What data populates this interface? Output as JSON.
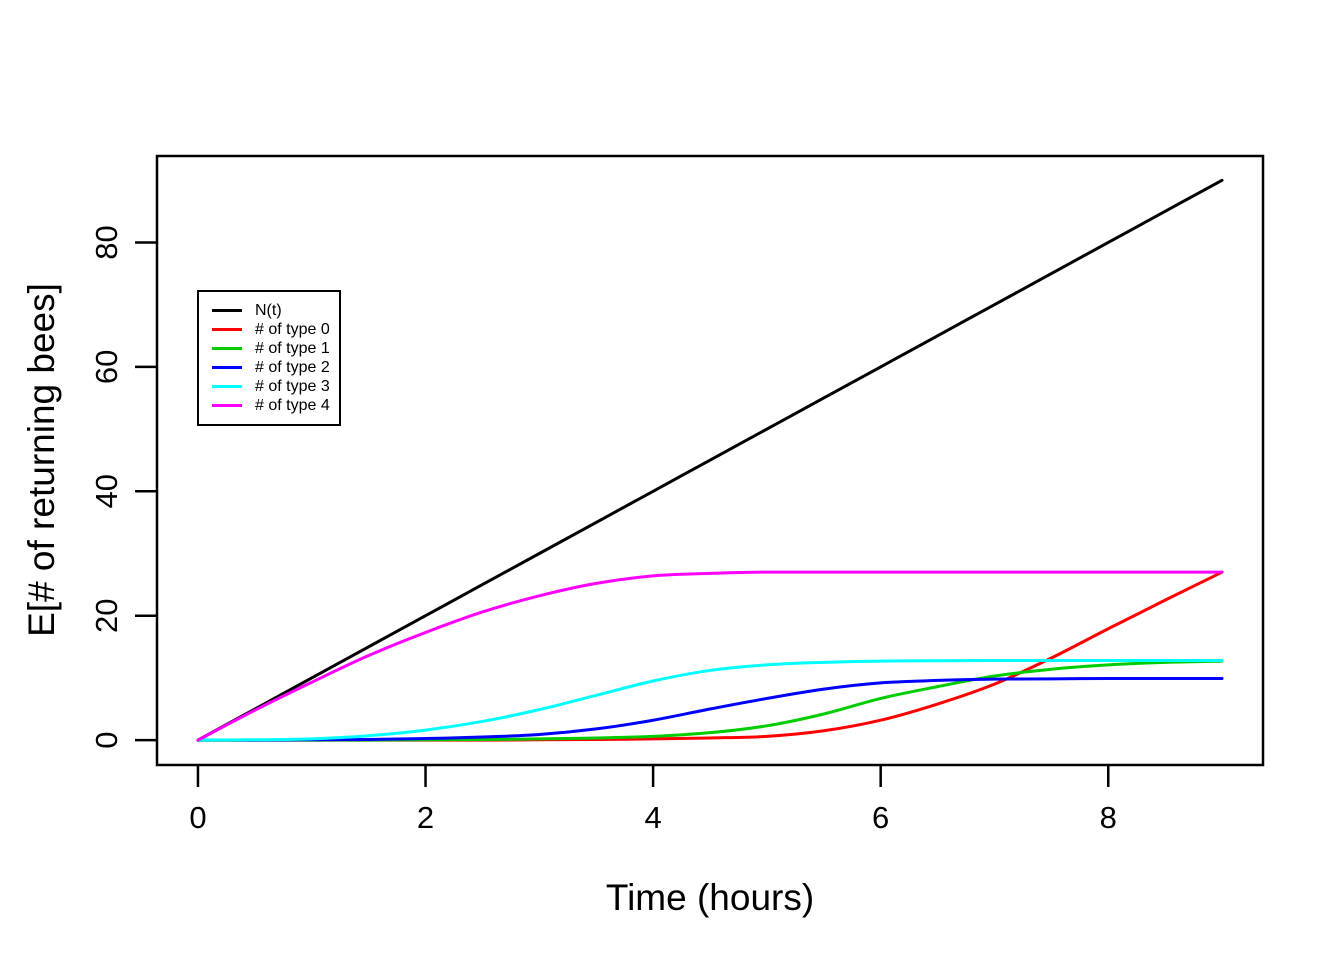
{
  "chart_data": {
    "type": "line",
    "title": "",
    "xlabel": "Time (hours)",
    "ylabel": "E[# of returning bees]",
    "x_ticks": [
      0,
      2,
      4,
      6,
      8
    ],
    "y_ticks": [
      0,
      20,
      40,
      60,
      80
    ],
    "xlim": [
      -0.36,
      9.36
    ],
    "ylim": [
      -4,
      93.9
    ],
    "grid": false,
    "legend_position": "upper-left-inside",
    "background_color": "#ffffff",
    "axis_color": "#000000",
    "x": [
      0,
      0.5,
      1,
      1.5,
      2,
      2.5,
      3,
      3.5,
      4,
      4.5,
      5,
      5.5,
      6,
      6.5,
      7,
      7.5,
      8,
      8.5,
      9
    ],
    "series": [
      {
        "name": "N(t)",
        "color": "#000000",
        "values": [
          0,
          5,
          10,
          15,
          20,
          25,
          30,
          35,
          40,
          45,
          50,
          55,
          60,
          65,
          70,
          75,
          80,
          85,
          90
        ]
      },
      {
        "name": "# of type 0",
        "color": "#FF0000",
        "values": [
          0,
          0,
          0,
          0,
          0,
          0,
          0.05,
          0.1,
          0.2,
          0.35,
          0.6,
          1.5,
          3.2,
          5.8,
          9.0,
          13.2,
          17.9,
          22.5,
          27
        ]
      },
      {
        "name": "# of type 1",
        "color": "#00CD00",
        "values": [
          0,
          0,
          0,
          0,
          0.05,
          0.1,
          0.2,
          0.35,
          0.6,
          1.2,
          2.3,
          4.2,
          6.7,
          8.6,
          10.3,
          11.4,
          12.1,
          12.5,
          12.7
        ]
      },
      {
        "name": "# of type 2",
        "color": "#0000FF",
        "values": [
          0,
          0,
          0.05,
          0.1,
          0.25,
          0.5,
          0.9,
          1.8,
          3.2,
          5.0,
          6.7,
          8.2,
          9.2,
          9.6,
          9.8,
          9.85,
          9.9,
          9.9,
          9.9
        ]
      },
      {
        "name": "# of type 3",
        "color": "#00FFFF",
        "values": [
          0,
          0.05,
          0.2,
          0.7,
          1.6,
          3.0,
          4.9,
          7.2,
          9.5,
          11.2,
          12.1,
          12.5,
          12.7,
          12.75,
          12.8,
          12.8,
          12.8,
          12.8,
          12.8
        ]
      },
      {
        "name": "# of type 4",
        "color": "#FF00FF",
        "values": [
          0,
          4.8,
          9.3,
          13.6,
          17.3,
          20.6,
          23.2,
          25.2,
          26.4,
          26.8,
          27,
          27,
          27,
          27,
          27,
          27,
          27,
          27,
          27
        ]
      }
    ]
  }
}
